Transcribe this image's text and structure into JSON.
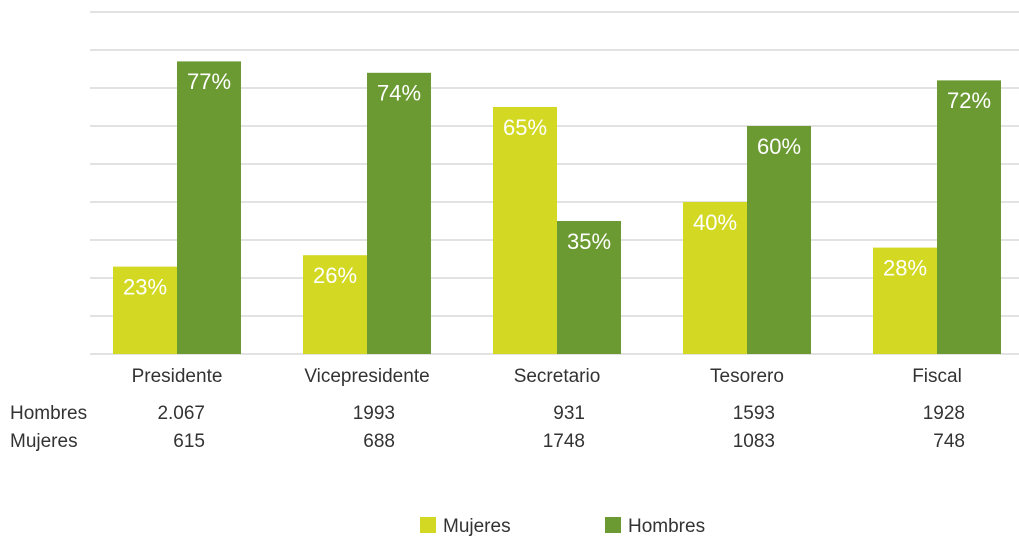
{
  "chart_data": {
    "type": "bar",
    "categories": [
      "Presidente",
      "Vicepresidente",
      "Secretario",
      "Tesorero",
      "Fiscal"
    ],
    "series": [
      {
        "name": "Mujeres",
        "color": "#d3d923",
        "values": [
          23,
          26,
          65,
          40,
          28
        ],
        "value_labels": [
          "23%",
          "26%",
          "65%",
          "40%",
          "28%"
        ]
      },
      {
        "name": "Hombres",
        "color": "#6a9a31",
        "values": [
          77,
          74,
          35,
          60,
          72
        ],
        "value_labels": [
          "77%",
          "74%",
          "35%",
          "60%",
          "72%"
        ]
      }
    ],
    "ylim": [
      0,
      90
    ],
    "yticks": [
      0,
      10,
      20,
      30,
      40,
      50,
      60,
      70,
      80,
      90
    ],
    "grid": true,
    "legend": "bottom",
    "table": {
      "rows": [
        {
          "name": "Hombres",
          "cells": [
            "2.067",
            "1993",
            "931",
            "1593",
            "1928"
          ]
        },
        {
          "name": "Mujeres",
          "cells": [
            "615",
            "688",
            "1748",
            "1083",
            "748"
          ]
        }
      ]
    }
  }
}
